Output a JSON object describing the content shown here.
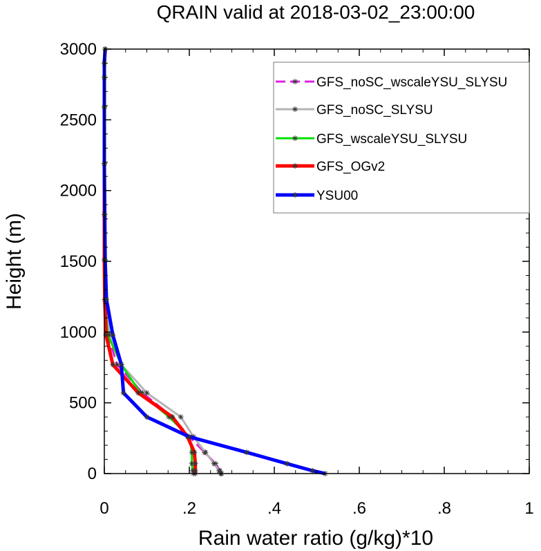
{
  "chart_data": {
    "type": "line",
    "title": "QRAIN valid at 2018-03-02_23:00:00",
    "xlabel": "Rain water ratio (g/kg)*10",
    "ylabel": "Height (m)",
    "xlim": [
      0,
      1
    ],
    "ylim": [
      0,
      3000
    ],
    "xticks": [
      0,
      0.2,
      0.4,
      0.6,
      0.8,
      1
    ],
    "xtick_labels": [
      "0",
      ".2",
      ".4",
      ".6",
      ".8",
      "1"
    ],
    "yticks": [
      0,
      500,
      1000,
      1500,
      2000,
      2500,
      3000
    ],
    "ytick_labels": [
      "0",
      "500",
      "1000",
      "1500",
      "2000",
      "2500",
      "3000"
    ],
    "grid": false,
    "legend_position": "top-right",
    "series": [
      {
        "name": "GFS_noSC_wscaleYSU_SLYSU",
        "color": "#e020e0",
        "dash": true,
        "width": 3,
        "x": [
          0.276,
          0.272,
          0.262,
          0.236,
          0.2,
          0.16,
          0.09,
          0.03,
          0.008,
          0.002,
          0,
          0,
          0,
          0,
          0,
          0,
          0.002
        ],
        "y": [
          0,
          20,
          70,
          150,
          260,
          400,
          570,
          770,
          980,
          1230,
          1510,
          1830,
          2190,
          2590,
          2800,
          2900,
          3000
        ]
      },
      {
        "name": "GFS_noSC_SLYSU",
        "color": "#b4b4b4",
        "dash": false,
        "width": 3,
        "x": [
          0.274,
          0.27,
          0.258,
          0.238,
          0.21,
          0.18,
          0.1,
          0.04,
          0.012,
          0.002,
          0,
          0,
          0,
          0,
          0,
          0,
          0.002
        ],
        "y": [
          0,
          20,
          70,
          150,
          260,
          400,
          570,
          770,
          980,
          1230,
          1510,
          1830,
          2190,
          2590,
          2800,
          2900,
          3000
        ]
      },
      {
        "name": "GFS_wscaleYSU_SLYSU",
        "color": "#00e000",
        "dash": false,
        "width": 3,
        "x": [
          0.21,
          0.208,
          0.206,
          0.206,
          0.2,
          0.152,
          0.085,
          0.04,
          0.008,
          0.002,
          0,
          0,
          0,
          0,
          0,
          0,
          0.002
        ],
        "y": [
          0,
          20,
          70,
          150,
          260,
          400,
          570,
          770,
          980,
          1230,
          1510,
          1830,
          2190,
          2590,
          2800,
          2900,
          3000
        ]
      },
      {
        "name": "GFS_OGv2",
        "color": "#ff0000",
        "dash": false,
        "width": 5,
        "x": [
          0.214,
          0.214,
          0.214,
          0.212,
          0.196,
          0.16,
          0.08,
          0.02,
          0.004,
          0.001,
          0,
          0,
          0,
          0,
          0,
          0,
          0.002
        ],
        "y": [
          0,
          20,
          70,
          150,
          260,
          400,
          570,
          770,
          980,
          1230,
          1510,
          1830,
          2190,
          2590,
          2800,
          2900,
          3000
        ]
      },
      {
        "name": "YSU00",
        "color": "#0000ff",
        "dash": false,
        "width": 5,
        "x": [
          0.52,
          0.49,
          0.43,
          0.335,
          0.2,
          0.1,
          0.045,
          0.04,
          0.02,
          0.005,
          0.002,
          0.001,
          0,
          0,
          0,
          0,
          0.002
        ],
        "y": [
          0,
          20,
          70,
          150,
          260,
          400,
          570,
          770,
          980,
          1230,
          1510,
          1830,
          2190,
          2590,
          2800,
          2900,
          3000
        ]
      }
    ]
  }
}
